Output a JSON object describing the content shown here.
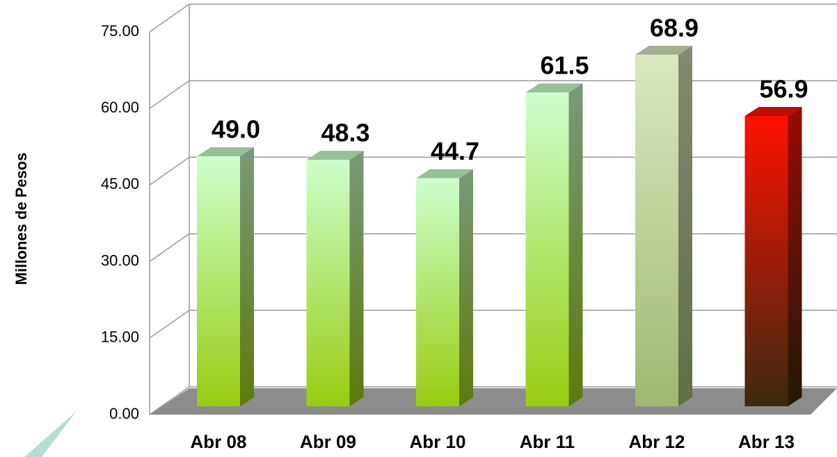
{
  "chart_data": {
    "type": "bar3d",
    "y_axis_label": "Millones de Pesos",
    "categories": [
      "Abr 08",
      "Abr 09",
      "Abr 10",
      "Abr 11",
      "Abr 12",
      "Abr 13"
    ],
    "values": [
      49.0,
      48.3,
      44.7,
      61.5,
      68.9,
      56.9
    ],
    "value_labels": [
      "49.0",
      "48.3",
      "44.7",
      "61.5",
      "68.9",
      "56.9"
    ],
    "colors": [
      [
        "#ccffcc",
        "#99cc11"
      ],
      [
        "#ccffcc",
        "#99cc11"
      ],
      [
        "#ccffcc",
        "#99cc11"
      ],
      [
        "#ccffcc",
        "#99cc11"
      ],
      [
        "#d8e8c0",
        "#a0b870"
      ],
      [
        "#ff1100",
        "#3a2a10"
      ]
    ],
    "ylim": [
      0,
      75
    ],
    "yticks": [
      {
        "value": 0,
        "label": "0.00"
      },
      {
        "value": 15,
        "label": "15.00"
      },
      {
        "value": 30,
        "label": "30.00"
      },
      {
        "value": 45,
        "label": "45.00"
      },
      {
        "value": 60,
        "label": "60.00"
      },
      {
        "value": 75,
        "label": "75.00"
      }
    ],
    "grid": true
  }
}
